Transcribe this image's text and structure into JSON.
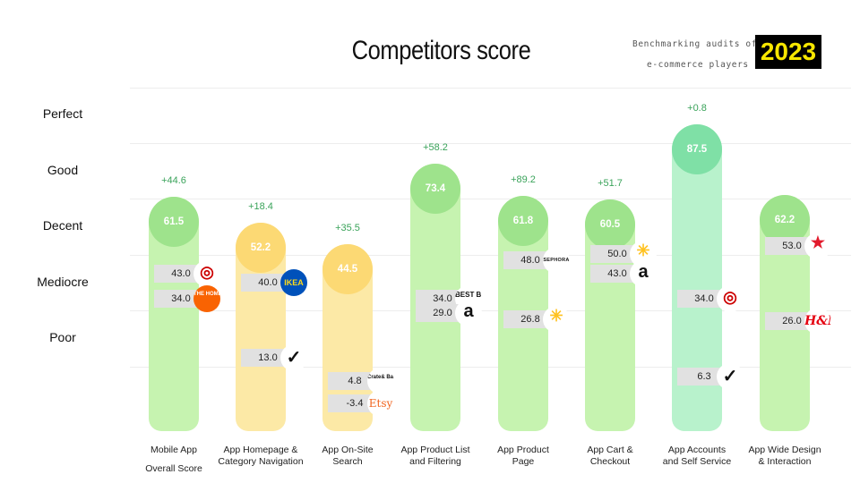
{
  "header": {
    "title": "Competitors score",
    "subtitle_line1": "Benchmarking audits of",
    "subtitle_line2": "e-commerce players",
    "year": "2023"
  },
  "chart_data": {
    "type": "bar",
    "title": "Competitors score",
    "levels": [
      "Perfect",
      "Good",
      "Decent",
      "Mediocre",
      "Poor"
    ],
    "level_values": [
      100,
      80,
      60,
      40,
      20
    ],
    "ylim": [
      -10,
      110
    ],
    "grid": true,
    "categories": [
      [
        "Mobile App",
        "Overall Score"
      ],
      [
        "App Homepage &",
        "Category Navigation"
      ],
      [
        "App On-Site",
        "Search"
      ],
      [
        "App Product List",
        "and Filtering"
      ],
      [
        "App Product",
        "Page"
      ],
      [
        "App Cart &",
        "Checkout"
      ],
      [
        "App Accounts",
        "and Self Service"
      ],
      [
        "App Wide Design",
        "& Interaction"
      ]
    ],
    "scores": [
      "61.5",
      "52.2",
      "44.5",
      "73.4",
      "61.8",
      "60.5",
      "87.5",
      "62.2"
    ],
    "score_values": [
      61.5,
      52.2,
      44.5,
      73.4,
      61.8,
      60.5,
      87.5,
      62.2
    ],
    "deltas": [
      "+44.6",
      "+18.4",
      "+35.5",
      "+58.2",
      "+89.2",
      "+51.7",
      "+0.8",
      ""
    ],
    "bar_colors": [
      "#c6f3b0",
      "#fce9a6",
      "#fce9a6",
      "#c6f3b0",
      "#c6f3b0",
      "#c6f3b0",
      "#b8f2cc",
      "#c6f3b0"
    ],
    "bubble_colors": [
      "#9ee38c",
      "#fcd974",
      "#fcd974",
      "#9ee38c",
      "#9ee38c",
      "#9ee38c",
      "#7fe0a6",
      "#9ee38c"
    ],
    "competitors": [
      [
        {
          "score": "43.0",
          "value": 43.0,
          "logo": "target-icon",
          "glyph": "◎"
        },
        {
          "score": "34.0",
          "value": 34.0,
          "logo": "home-depot-icon",
          "glyph": "THE HOME DEPOT"
        }
      ],
      [
        {
          "score": "40.0",
          "value": 40.0,
          "logo": "ikea-icon",
          "glyph": "IKEA"
        },
        {
          "score": "13.0",
          "value": 13.0,
          "logo": "nike-icon",
          "glyph": "✓"
        }
      ],
      [
        {
          "score": "4.8",
          "value": 4.8,
          "logo": "crate-barrel-icon",
          "glyph": "Crate& Barrel"
        },
        {
          "score": "-3.4",
          "value": -3.4,
          "logo": "etsy-icon",
          "glyph": "Etsy"
        }
      ],
      [
        {
          "score": "34.0",
          "value": 34.0,
          "logo": "best-buy-icon",
          "glyph": "BEST BUY"
        },
        {
          "score": "29.0",
          "value": 29.0,
          "logo": "amazon-icon",
          "glyph": "a"
        }
      ],
      [
        {
          "score": "48.0",
          "value": 48.0,
          "logo": "sephora-icon",
          "glyph": "SEPHORA"
        },
        {
          "score": "26.8",
          "value": 26.8,
          "logo": "walmart-icon",
          "glyph": "✳"
        }
      ],
      [
        {
          "score": "50.0",
          "value": 50.0,
          "logo": "walmart-icon",
          "glyph": "✳"
        },
        {
          "score": "43.0",
          "value": 43.0,
          "logo": "amazon-icon",
          "glyph": "a"
        }
      ],
      [
        {
          "score": "34.0",
          "value": 34.0,
          "logo": "target-icon",
          "glyph": "◎"
        },
        {
          "score": "6.3",
          "value": 6.3,
          "logo": "nike-icon",
          "glyph": "✓"
        }
      ],
      [
        {
          "score": "53.0",
          "value": 53.0,
          "logo": "macys-icon",
          "glyph": "★"
        },
        {
          "score": "26.0",
          "value": 26.0,
          "logo": "hm-icon",
          "glyph": "H&M"
        }
      ]
    ]
  }
}
